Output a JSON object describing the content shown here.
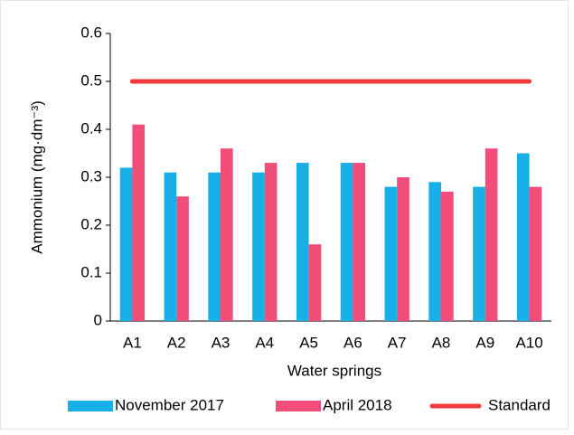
{
  "chart_data": {
    "type": "bar",
    "x_label": "Water springs",
    "y_label": "Ammonium (mg·dm⁻³)",
    "categories": [
      "A1",
      "A2",
      "A3",
      "A4",
      "A5",
      "A6",
      "A7",
      "A8",
      "A9",
      "A10"
    ],
    "series": [
      {
        "name": "November 2017",
        "color": "#17afe6",
        "values": [
          0.32,
          0.31,
          0.31,
          0.31,
          0.33,
          0.33,
          0.28,
          0.29,
          0.28,
          0.35
        ]
      },
      {
        "name": "April 2018",
        "color": "#f04d78",
        "values": [
          0.41,
          0.26,
          0.36,
          0.33,
          0.16,
          0.33,
          0.3,
          0.27,
          0.36,
          0.28
        ]
      },
      {
        "name": "Standard",
        "type": "line",
        "color": "#f0393a",
        "values": [
          0.5,
          0.5,
          0.5,
          0.5,
          0.5,
          0.5,
          0.5,
          0.5,
          0.5,
          0.5
        ]
      }
    ],
    "ylim": [
      0,
      0.6
    ],
    "yticks": [
      0,
      0.1,
      0.2,
      0.3,
      0.4,
      0.5,
      0.6
    ],
    "grid": false,
    "legend": "bottom"
  }
}
